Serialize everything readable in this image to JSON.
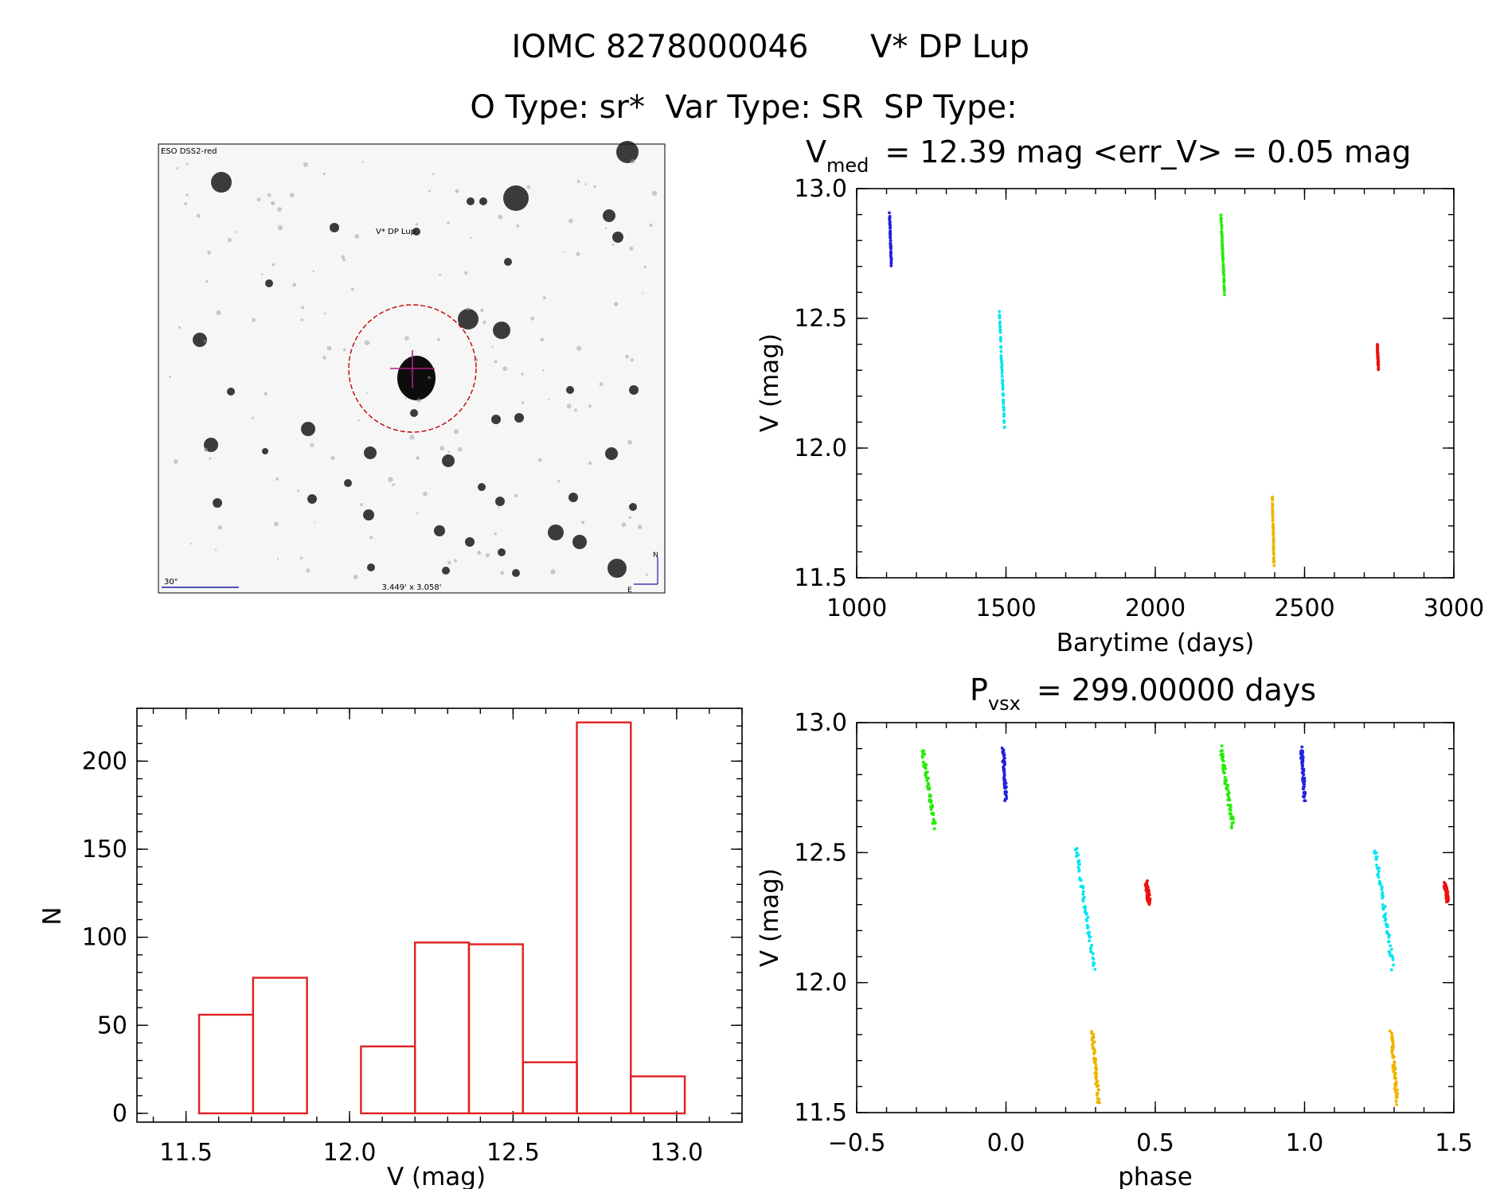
{
  "header": {
    "line1_id": "IOMC 8278000046",
    "line1_name": "V* DP Lup",
    "line2": "O Type: sr*  Var Type: SR  SP Type:"
  },
  "finder": {
    "survey_label": "ESO DSS2-red",
    "target_label": "V* DP Lup",
    "scale_label": "30\"",
    "fov_label": "3.449' x 3.058'",
    "north_label": "N",
    "east_label": "E"
  },
  "colors": {
    "blue": "#2222dd",
    "cyan": "#00e5f2",
    "green": "#22ee00",
    "orange": "#f0b400",
    "red": "#ee1111",
    "hist": "#e02020"
  },
  "chart_data": [
    {
      "type": "scatter",
      "name": "light-curve",
      "title_main": "V",
      "title_sub": "med",
      "title_rest": "= 12.39 mag <err_V> = 0.05 mag",
      "xlabel": "Barytime (days)",
      "ylabel": "V (mag)",
      "xlim": [
        1000,
        3000
      ],
      "ylim": [
        13.0,
        11.5
      ],
      "xticks": [
        "1000",
        "1500",
        "2000",
        "2500",
        "3000"
      ],
      "yticks": [
        "11.5",
        "12.0",
        "12.5",
        "13.0"
      ],
      "series": [
        {
          "name": "season-1",
          "color": "blue",
          "x_range": [
            1110,
            1116
          ],
          "v_range": [
            12.71,
            12.9
          ]
        },
        {
          "name": "season-2",
          "color": "cyan",
          "x_range": [
            1478,
            1495
          ],
          "v_range": [
            12.08,
            12.52
          ]
        },
        {
          "name": "season-3",
          "color": "green",
          "x_range": [
            2220,
            2232
          ],
          "v_range": [
            12.6,
            12.9
          ]
        },
        {
          "name": "season-4",
          "color": "orange",
          "x_range": [
            2392,
            2398
          ],
          "v_range": [
            11.55,
            11.81
          ]
        },
        {
          "name": "season-5",
          "color": "red",
          "x_range": [
            2744,
            2747
          ],
          "v_range": [
            12.31,
            12.39
          ]
        }
      ]
    },
    {
      "type": "bar",
      "name": "histogram",
      "xlabel": "V (mag)",
      "ylabel": "N",
      "xlim": [
        11.35,
        13.2
      ],
      "ylim": [
        -5,
        230
      ],
      "xticks": [
        "11.5",
        "12.0",
        "12.5",
        "13.0"
      ],
      "yticks": [
        "0",
        "50",
        "100",
        "150",
        "200"
      ],
      "bin_edges": [
        11.54,
        11.705,
        11.87,
        12.035,
        12.2,
        12.365,
        12.53,
        12.695,
        12.86,
        13.025
      ],
      "counts": [
        56,
        77,
        0,
        38,
        97,
        96,
        29,
        222,
        21
      ]
    },
    {
      "type": "scatter",
      "name": "phased-curve",
      "title_main": "P",
      "title_sub": "vsx",
      "title_rest": "= 299.00000 days",
      "xlabel": "phase",
      "ylabel": "V (mag)",
      "xlim": [
        -0.5,
        1.5
      ],
      "ylim": [
        13.0,
        11.5
      ],
      "xticks": [
        "−0.5",
        "0.0",
        "0.5",
        "1.0",
        "1.5"
      ],
      "yticks": [
        "11.5",
        "12.0",
        "12.5",
        "13.0"
      ],
      "series": [
        {
          "name": "season-1",
          "color": "blue",
          "phase_centers": [
            -0.005,
            0.995
          ],
          "phase_width": 0.01,
          "v_range": [
            12.71,
            12.9
          ]
        },
        {
          "name": "season-2",
          "color": "cyan",
          "phase_centers": [
            0.265,
            1.265
          ],
          "phase_width": 0.06,
          "v_range": [
            12.06,
            12.52
          ]
        },
        {
          "name": "season-3",
          "color": "green",
          "phase_centers": [
            -0.26,
            0.74
          ],
          "phase_width": 0.04,
          "v_range": [
            12.6,
            12.9
          ]
        },
        {
          "name": "season-4",
          "color": "orange",
          "phase_centers": [
            0.3,
            1.3
          ],
          "phase_width": 0.02,
          "v_range": [
            11.54,
            11.81
          ]
        },
        {
          "name": "season-5",
          "color": "red",
          "phase_centers": [
            0.475,
            1.475
          ],
          "phase_width": 0.01,
          "v_range": [
            12.31,
            12.38
          ]
        }
      ]
    }
  ]
}
